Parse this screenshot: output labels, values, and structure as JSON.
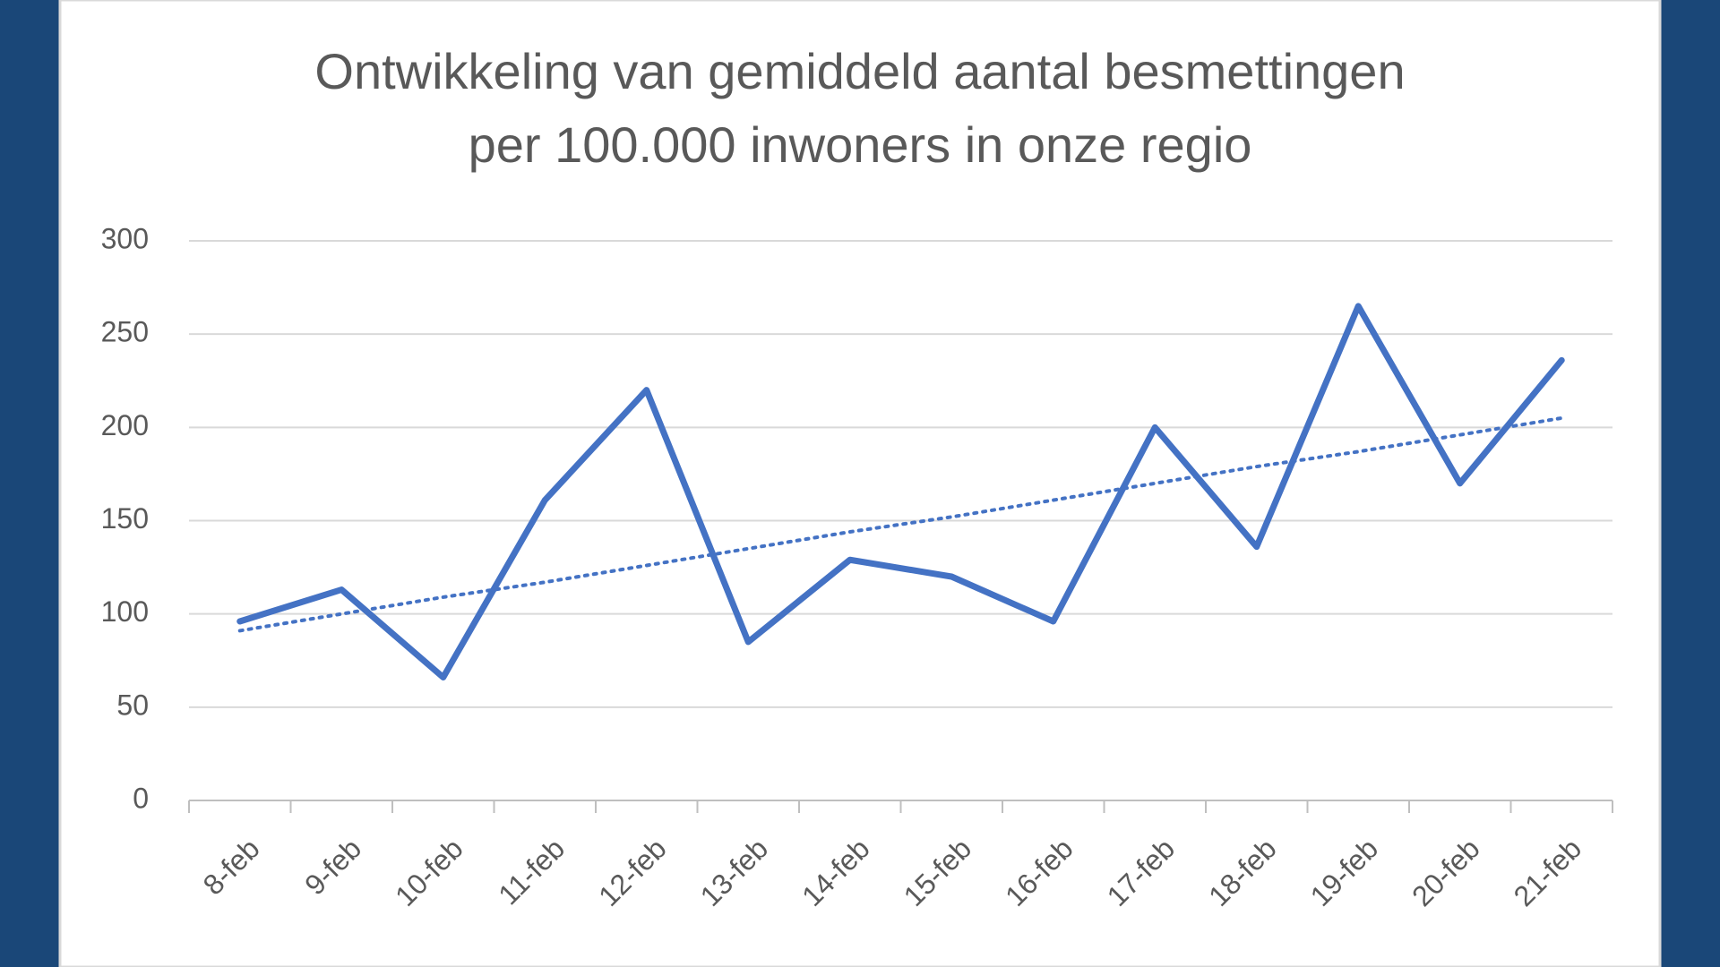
{
  "chart_data": {
    "type": "line",
    "title": [
      "Ontwikkeling van gemiddeld aantal besmettingen",
      "per 100.000 inwoners in onze regio"
    ],
    "categories": [
      "8-feb",
      "9-feb",
      "10-feb",
      "11-feb",
      "12-feb",
      "13-feb",
      "14-feb",
      "15-feb",
      "16-feb",
      "17-feb",
      "18-feb",
      "19-feb",
      "20-feb",
      "21-feb"
    ],
    "series": [
      {
        "color": "#4472c4",
        "style": "solid",
        "values": [
          96,
          113,
          66,
          161,
          220,
          85,
          129,
          120,
          96,
          200,
          136,
          265,
          170,
          236
        ]
      },
      {
        "color": "#4472c4",
        "style": "dotted",
        "values": [
          91,
          100,
          109,
          117,
          126,
          135,
          144,
          152,
          161,
          170,
          179,
          187,
          196,
          205
        ]
      }
    ],
    "ylim": [
      0,
      300
    ],
    "yticks": [
      0,
      50,
      100,
      150,
      200,
      250,
      300
    ],
    "grid": true
  }
}
